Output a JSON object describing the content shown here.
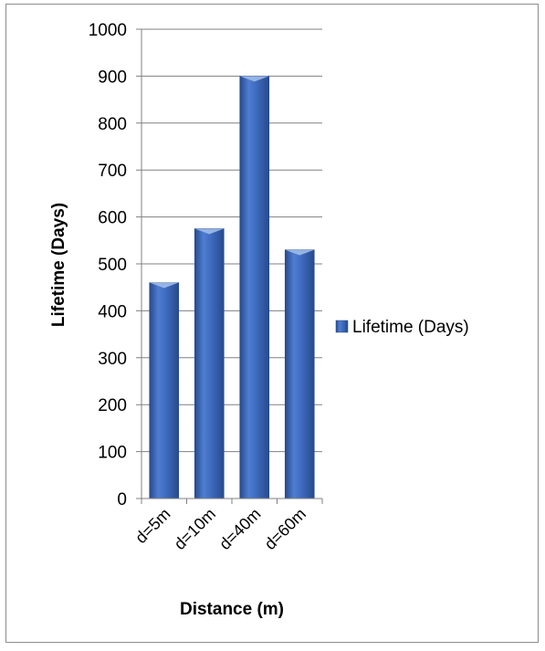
{
  "chart_data": {
    "type": "bar",
    "categories": [
      "d=5m",
      "d=10m",
      "d=40m",
      "d=60m"
    ],
    "series": [
      {
        "name": "Lifetime (Days)",
        "values": [
          460,
          575,
          900,
          530
        ]
      }
    ],
    "xlabel": "Distance (m)",
    "ylabel": "Lifetime (Days)",
    "ylim": [
      0,
      1000
    ],
    "yticks": [
      0,
      100,
      200,
      300,
      400,
      500,
      600,
      700,
      800,
      900,
      1000
    ],
    "grid": true,
    "legend_position": "right",
    "colors": {
      "bar_light": "#6f93d6",
      "bar_main": "#3f6cc0",
      "bar_dark": "#274a8c",
      "bar_cap": "#9fbbe8",
      "grid": "#808080",
      "axis": "#808080"
    }
  }
}
